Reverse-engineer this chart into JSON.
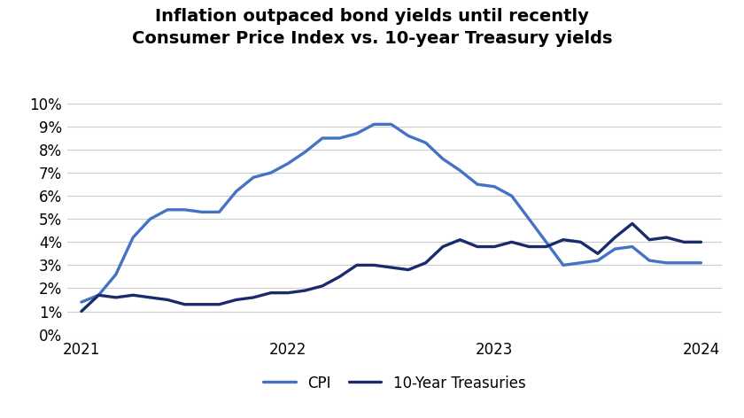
{
  "title_line1": "Inflation outpaced bond yields until recently",
  "title_line2": "Consumer Price Index vs. 10-year Treasury yields",
  "title_fontsize": 14,
  "title_fontweight": "bold",
  "background_color": "#ffffff",
  "grid_color": "#cccccc",
  "ylim": [
    0,
    0.105
  ],
  "yticks": [
    0.0,
    0.01,
    0.02,
    0.03,
    0.04,
    0.05,
    0.06,
    0.07,
    0.08,
    0.09,
    0.1
  ],
  "tick_fontsize": 12,
  "legend_labels": [
    "CPI",
    "10-Year Treasuries"
  ],
  "cpi_color": "#4472c4",
  "treasury_color": "#1a2b6b",
  "line_width": 2.4,
  "x_labels": [
    "2021",
    "2022",
    "2023",
    "2024"
  ],
  "cpi_x": [
    2021.0,
    2021.083,
    2021.167,
    2021.25,
    2021.333,
    2021.417,
    2021.5,
    2021.583,
    2021.667,
    2021.75,
    2021.833,
    2021.917,
    2022.0,
    2022.083,
    2022.167,
    2022.25,
    2022.333,
    2022.417,
    2022.5,
    2022.583,
    2022.667,
    2022.75,
    2022.833,
    2022.917,
    2023.0,
    2023.083,
    2023.167,
    2023.25,
    2023.333,
    2023.417,
    2023.5,
    2023.583,
    2023.667,
    2023.75,
    2023.833,
    2023.917,
    2024.0
  ],
  "cpi_y": [
    0.014,
    0.017,
    0.026,
    0.042,
    0.05,
    0.054,
    0.054,
    0.053,
    0.053,
    0.062,
    0.068,
    0.07,
    0.074,
    0.079,
    0.085,
    0.085,
    0.087,
    0.091,
    0.091,
    0.086,
    0.083,
    0.076,
    0.071,
    0.065,
    0.064,
    0.06,
    0.05,
    0.04,
    0.03,
    0.031,
    0.032,
    0.037,
    0.038,
    0.032,
    0.031,
    0.031,
    0.031
  ],
  "treasury_x": [
    2021.0,
    2021.083,
    2021.167,
    2021.25,
    2021.333,
    2021.417,
    2021.5,
    2021.583,
    2021.667,
    2021.75,
    2021.833,
    2021.917,
    2022.0,
    2022.083,
    2022.167,
    2022.25,
    2022.333,
    2022.417,
    2022.5,
    2022.583,
    2022.667,
    2022.75,
    2022.833,
    2022.917,
    2023.0,
    2023.083,
    2023.167,
    2023.25,
    2023.333,
    2023.417,
    2023.5,
    2023.583,
    2023.667,
    2023.75,
    2023.833,
    2023.917,
    2024.0
  ],
  "treasury_y": [
    0.01,
    0.017,
    0.016,
    0.017,
    0.016,
    0.015,
    0.013,
    0.013,
    0.013,
    0.015,
    0.016,
    0.018,
    0.018,
    0.019,
    0.021,
    0.025,
    0.03,
    0.03,
    0.029,
    0.028,
    0.031,
    0.038,
    0.041,
    0.038,
    0.038,
    0.04,
    0.038,
    0.038,
    0.041,
    0.04,
    0.035,
    0.042,
    0.048,
    0.041,
    0.042,
    0.04,
    0.04
  ]
}
